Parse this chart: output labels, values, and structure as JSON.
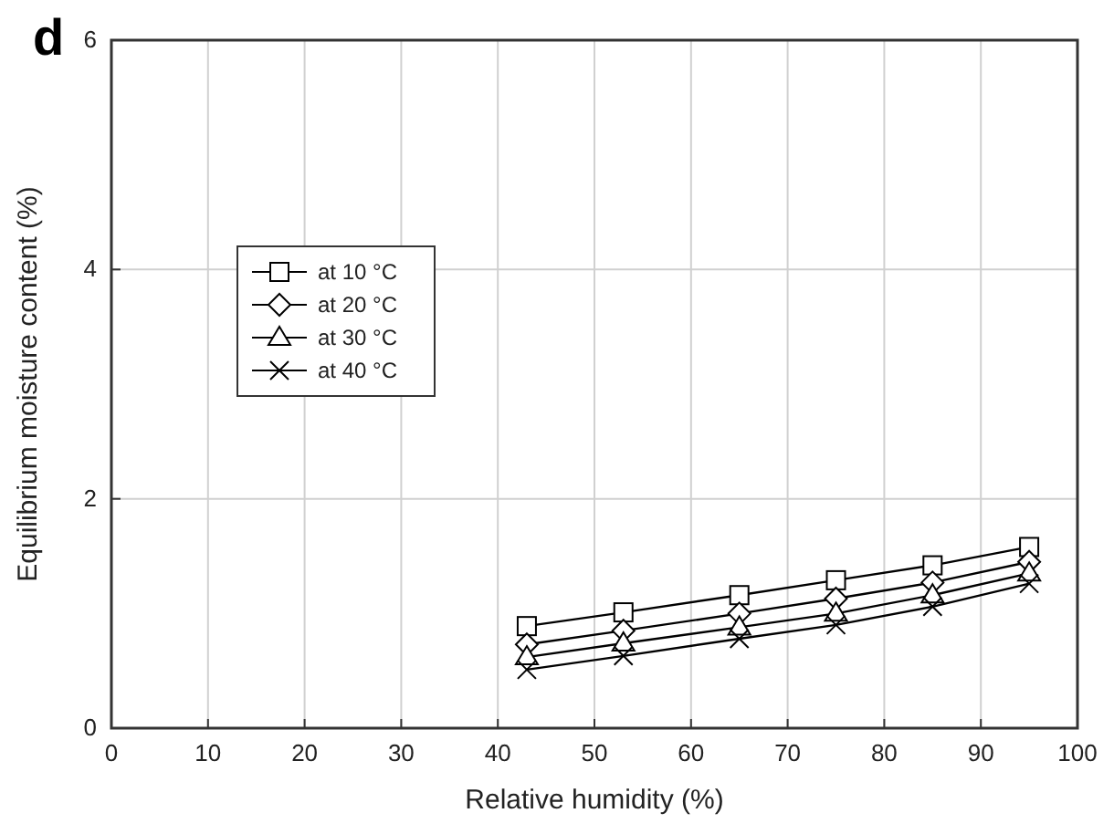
{
  "chart_data": {
    "type": "line",
    "xlabel": "Relative humidity (%)",
    "ylabel": "Equilibrium moisture content (%)",
    "annotations": [
      "d"
    ],
    "x": [
      43,
      53,
      65,
      75,
      85,
      95
    ],
    "series": [
      {
        "name": "at 10 °C",
        "color": "#000000",
        "marker": "square",
        "values": [
          0.89,
          1.01,
          1.16,
          1.29,
          1.42,
          1.58
        ]
      },
      {
        "name": "at 20 °C",
        "color": "#000000",
        "marker": "diamond",
        "values": [
          0.73,
          0.85,
          1.0,
          1.13,
          1.27,
          1.45
        ]
      },
      {
        "name": "at 30 °C",
        "color": "#000000",
        "marker": "triangle",
        "values": [
          0.62,
          0.74,
          0.88,
          1.0,
          1.16,
          1.35
        ]
      },
      {
        "name": "at 40 °C",
        "color": "#000000",
        "marker": "cross",
        "values": [
          0.51,
          0.63,
          0.78,
          0.9,
          1.06,
          1.26
        ]
      }
    ],
    "xlim": [
      0,
      100
    ],
    "xticks": [
      0,
      10,
      20,
      30,
      40,
      50,
      60,
      70,
      80,
      90,
      100
    ],
    "ylim": [
      0,
      6
    ],
    "yticks": [
      0,
      2,
      4,
      6
    ],
    "grid": true,
    "legend": "left",
    "line_style": "solid"
  }
}
